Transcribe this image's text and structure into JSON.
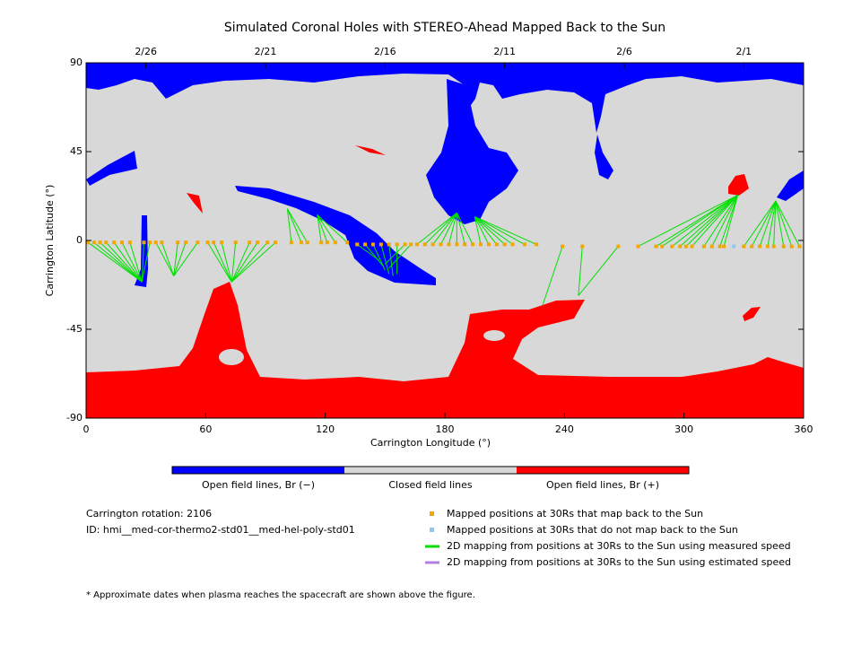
{
  "chart_data": {
    "type": "map",
    "title": "Simulated Coronal Holes with STEREO-Ahead Mapped Back to the Sun",
    "xlabel": "Carrington Longitude (°)",
    "ylabel": "Carrington Latitude (°)",
    "xlim": [
      0,
      360
    ],
    "ylim": [
      -90,
      90
    ],
    "xticks": [
      0,
      60,
      120,
      180,
      240,
      300,
      360
    ],
    "yticks": [
      90,
      45,
      0,
      -45,
      -90
    ],
    "top_ticks": [
      {
        "value": 30,
        "label": "2/26"
      },
      {
        "value": 90,
        "label": "2/21"
      },
      {
        "value": 150,
        "label": "2/16"
      },
      {
        "value": 210,
        "label": "2/11"
      },
      {
        "value": 270,
        "label": "2/6"
      },
      {
        "value": 330,
        "label": "2/1"
      }
    ],
    "colorbar": {
      "labels": [
        "Open field lines, Br (−)",
        "Closed field lines",
        "Open field lines, Br (+)"
      ],
      "colors": [
        "#0000ff",
        "#d8d8d8",
        "#ff0000"
      ]
    },
    "series": [
      {
        "name": "Mapped positions at 30Rs that map back to the Sun",
        "color": "#f0a800",
        "x": [
          1,
          4,
          7,
          10,
          14,
          18,
          22,
          29,
          32,
          35,
          38,
          46,
          50,
          56,
          61,
          64,
          68,
          75,
          82,
          86,
          91,
          95,
          103,
          108,
          111,
          118,
          121,
          125,
          131,
          136,
          140,
          144,
          148,
          152,
          156,
          160,
          163,
          166,
          170,
          174,
          178,
          182,
          186,
          190,
          194,
          198,
          202,
          206,
          210,
          214,
          220,
          226,
          239,
          249,
          267,
          277,
          286,
          289,
          294,
          298,
          301,
          304,
          310,
          314,
          318,
          320,
          330,
          334,
          338,
          342,
          345,
          350,
          354,
          358
        ],
        "values": [
          -1,
          -1,
          -1,
          -1,
          -1,
          -1,
          -1,
          -1,
          -1,
          -1,
          -1,
          -1,
          -1,
          -1,
          -1,
          -1,
          -1,
          -1,
          -1,
          -1,
          -1,
          -1,
          -1,
          -1,
          -1,
          -1,
          -1,
          -1,
          -1,
          -2,
          -2,
          -2,
          -2,
          -2,
          -2,
          -2,
          -2,
          -2,
          -2,
          -2,
          -2,
          -2,
          -2,
          -2,
          -2,
          -2,
          -2,
          -2,
          -2,
          -2,
          -2,
          -2,
          -3,
          -3,
          -3,
          -3,
          -3,
          -3,
          -3,
          -3,
          -3,
          -3,
          -3,
          -3,
          -3,
          -3,
          -3,
          -3,
          -3,
          -3,
          -3,
          -3,
          -3,
          -3
        ]
      },
      {
        "name": "Mapped positions at 30Rs that do not map back to the Sun",
        "color": "#8ec8f0",
        "x": [
          325
        ],
        "values": [
          -3
        ]
      },
      {
        "name": "2D mapping from positions at 30Rs to the Sun using measured speed",
        "color": "#00e000",
        "x": [
          28,
          28,
          28,
          28,
          28,
          28,
          28,
          28,
          28,
          44,
          44,
          44,
          44,
          44,
          73,
          73,
          73,
          73,
          73,
          73,
          73,
          73,
          101,
          101,
          101,
          116,
          116,
          116,
          116,
          147,
          149,
          150,
          152,
          154,
          156,
          150,
          152,
          186,
          186,
          186,
          186,
          186,
          186,
          186,
          186,
          195,
          195,
          195,
          195,
          195,
          195,
          195,
          229,
          247,
          247,
          327,
          327,
          327,
          327,
          327,
          327,
          327,
          327,
          327,
          327,
          327,
          346,
          346,
          346,
          346,
          346,
          346,
          346,
          346
        ],
        "values": [
          -21,
          -21,
          -21,
          -21,
          -21,
          -21,
          -21,
          -21,
          -21,
          -18,
          -18,
          -18,
          -18,
          -18,
          -21,
          -21,
          -21,
          -21,
          -21,
          -21,
          -21,
          -21,
          16,
          16,
          16,
          13,
          13,
          13,
          13,
          -10,
          -13,
          -15,
          -17,
          -18,
          -17,
          -12,
          -14,
          14,
          14,
          14,
          14,
          14,
          14,
          14,
          14,
          12,
          12,
          12,
          12,
          12,
          12,
          12,
          -33,
          -28,
          -28,
          23,
          23,
          23,
          23,
          23,
          23,
          23,
          23,
          23,
          23,
          23,
          20,
          20,
          20,
          20,
          20,
          20,
          20,
          20
        ]
      },
      {
        "name": "2D mapping from positions at 30Rs to the Sun using estimated speed",
        "color": "#b080e0",
        "x": [],
        "values": []
      }
    ],
    "rotation": "Carrington rotation: 2106",
    "id": "ID: hmi__med-cor-thermo2-std01__med-hel-poly-std01",
    "footnote": "* Approximate dates when plasma reaches the spacecraft are shown above the figure."
  }
}
